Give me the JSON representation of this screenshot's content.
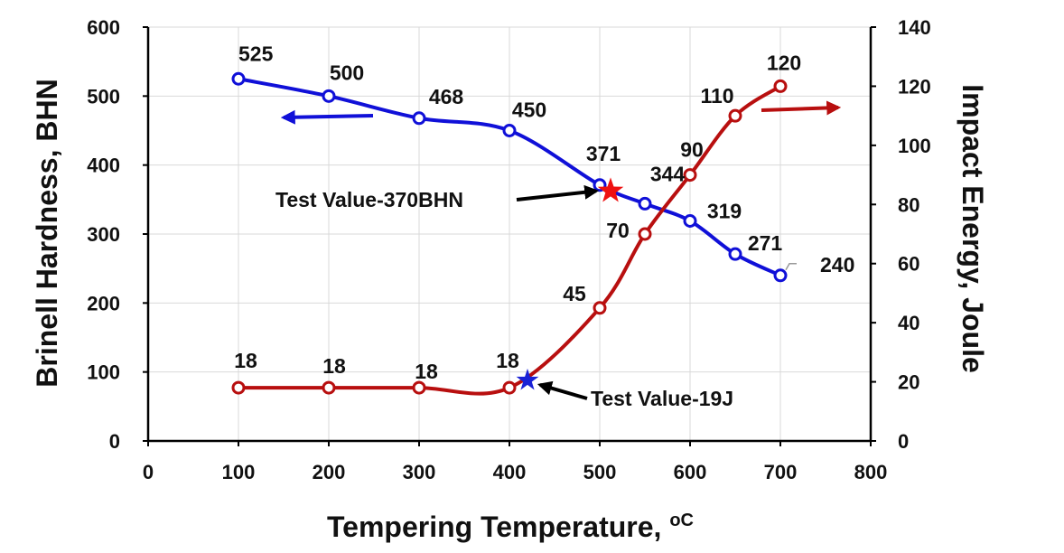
{
  "chart_data": {
    "type": "line",
    "xlabel": "Tempering Temperature, ",
    "xlabel_unit": "oC",
    "ylabel_left": "Brinell Hardness, BHN",
    "ylabel_right": "Impact Energy, Joule",
    "xlim": [
      0,
      800
    ],
    "ylim_left": [
      0,
      600
    ],
    "ylim_right": [
      0,
      140
    ],
    "x_ticks": [
      "0",
      "100",
      "200",
      "300",
      "400",
      "500",
      "600",
      "700",
      "800"
    ],
    "y_left_ticks": [
      "0",
      "100",
      "200",
      "300",
      "400",
      "500",
      "600"
    ],
    "y_right_ticks": [
      "0",
      "20",
      "40",
      "60",
      "80",
      "100",
      "120",
      "140"
    ],
    "grid": true,
    "series": [
      {
        "axis": "left",
        "color": "#1010d8",
        "x": [
          100,
          200,
          300,
          400,
          500,
          550,
          600,
          650,
          700
        ],
        "y": [
          525,
          500,
          468,
          450,
          371,
          344,
          319,
          271,
          240
        ],
        "labels": [
          "525",
          "500",
          "468",
          "450",
          "371",
          "344",
          "319",
          "271",
          "240"
        ]
      },
      {
        "axis": "right",
        "color": "#b80f0f",
        "x": [
          100,
          200,
          300,
          400,
          500,
          550,
          600,
          650,
          700
        ],
        "y": [
          18,
          18,
          18,
          18,
          45,
          70,
          90,
          110,
          120
        ],
        "labels": [
          "18",
          "18",
          "18",
          "18",
          "45",
          "70",
          "90",
          "110",
          "120"
        ]
      }
    ],
    "annotations": [
      {
        "text": "Test Value-370BHN",
        "marker": "red-star",
        "x": 512,
        "y": 365,
        "axis": "left"
      },
      {
        "text": "Test Value-19J",
        "marker": "blue-star",
        "x": 420,
        "y": 20.5,
        "axis": "right"
      }
    ],
    "arrow_left_color": "#1010d8",
    "arrow_right_color": "#b80f0f"
  }
}
